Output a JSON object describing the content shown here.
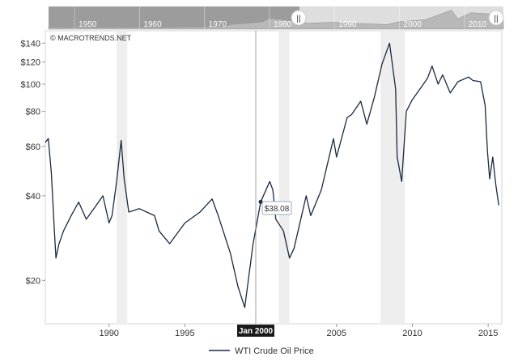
{
  "credit": "© MACROTRENDS.NET",
  "navigator": {
    "decades": [
      "1950",
      "1960",
      "1970",
      "1980",
      "1990",
      "2000",
      "2010"
    ],
    "handle_glyph": "||"
  },
  "crosshair": {
    "x_label": "Jan 2000",
    "value_label": "$38.08"
  },
  "legend": {
    "label": "WTI Crude Oil Price"
  },
  "colors": {
    "line": "#1a2a40",
    "recession": "#eeeeee",
    "plot_border": "#d6d6d6",
    "navigator_fill": "#b0b0b0"
  },
  "chart_data": {
    "type": "line",
    "title": "",
    "xlabel": "",
    "ylabel": "",
    "y_scale": "log",
    "xlim": [
      1985.8,
      2015.9
    ],
    "ylim": [
      14,
      155
    ],
    "x_tick_labels": [
      "1990",
      "1995",
      "2000",
      "2005",
      "2010",
      "2015"
    ],
    "x_ticks": [
      1990,
      1995,
      2000,
      2005,
      2010,
      2015
    ],
    "y_tick_labels": [
      "$20",
      "$40",
      "$60",
      "$80",
      "$100",
      "$120",
      "$140"
    ],
    "y_ticks": [
      20,
      40,
      60,
      80,
      100,
      120,
      140
    ],
    "recessions": [
      [
        1990.5,
        1991.2
      ],
      [
        2001.2,
        2001.9
      ],
      [
        2007.9,
        2009.5
      ]
    ],
    "series": [
      {
        "name": "WTI Crude Oil Price",
        "x": [
          1985.8,
          1986.0,
          1986.2,
          1986.4,
          1986.5,
          1986.7,
          1987.0,
          1987.5,
          1988.0,
          1988.5,
          1989.0,
          1989.6,
          1990.0,
          1990.2,
          1990.5,
          1990.8,
          1991.0,
          1991.3,
          1992.0,
          1993.0,
          1993.3,
          1994.0,
          1995.0,
          1996.0,
          1996.8,
          1997.2,
          1998.0,
          1998.5,
          1998.95,
          1999.5,
          2000.0,
          2000.6,
          2000.8,
          2001.0,
          2001.5,
          2001.9,
          2002.2,
          2003.0,
          2003.3,
          2004.0,
          2004.8,
          2005.0,
          2005.7,
          2006.0,
          2006.6,
          2007.0,
          2007.5,
          2008.0,
          2008.5,
          2008.9,
          2009.0,
          2009.3,
          2009.6,
          2010.0,
          2010.5,
          2011.0,
          2011.3,
          2011.7,
          2012.0,
          2012.5,
          2013.0,
          2013.7,
          2014.0,
          2014.5,
          2014.8,
          2014.95,
          2015.1,
          2015.3,
          2015.5,
          2015.7
        ],
        "values": [
          62,
          64,
          48,
          30,
          24,
          27,
          30,
          34,
          38,
          33,
          36,
          40,
          32,
          34,
          45,
          63,
          46,
          35,
          36,
          34,
          30,
          27,
          32,
          35,
          39,
          34,
          25,
          19,
          16,
          27,
          38.08,
          45,
          42,
          33,
          30,
          24,
          26,
          40,
          34,
          42,
          64,
          55,
          76,
          78,
          87,
          72,
          90,
          118,
          140,
          96,
          55,
          45,
          80,
          88,
          96,
          105,
          116,
          100,
          108,
          93,
          102,
          106,
          103,
          102,
          84,
          58,
          46,
          55,
          44,
          37
        ]
      }
    ]
  }
}
